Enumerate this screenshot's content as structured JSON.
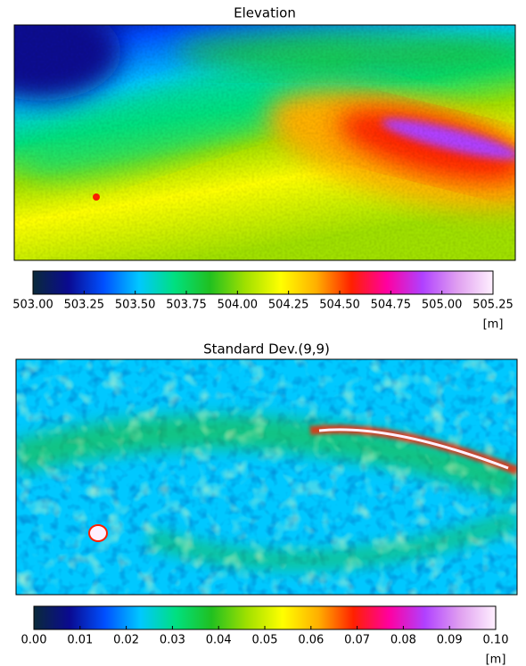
{
  "chart_data": [
    {
      "type": "heatmap",
      "title": "Elevation",
      "colormap": [
        "#0a2a3a",
        "#0a0a90",
        "#0050ff",
        "#00c8ff",
        "#00e080",
        "#20c020",
        "#a0e000",
        "#ffff00",
        "#ffb000",
        "#ff2000",
        "#ff00a0",
        "#b040ff",
        "#e0a0f0",
        "#fff0ff"
      ],
      "colorbar": {
        "label": "[m]",
        "lim": [
          503,
          505.25
        ],
        "ticks": [
          {
            "value": 503,
            "label": "503.00"
          },
          503.25,
          {
            "value": 503.5,
            "label": "503.50"
          },
          503.75,
          {
            "value": 504,
            "label": "504.00"
          },
          504.25,
          {
            "value": 504.5,
            "label": "504.50"
          },
          504.75,
          {
            "value": 505,
            "label": "505.00"
          },
          505.25
        ]
      }
    },
    {
      "type": "heatmap",
      "title": "Standard Dev.(9,9)",
      "colormap": [
        "#0a2a3a",
        "#0a0a90",
        "#0050ff",
        "#00c8ff",
        "#00e080",
        "#20c020",
        "#a0e000",
        "#ffff00",
        "#ffb000",
        "#ff2000",
        "#ff00a0",
        "#b040ff",
        "#e0a0f0",
        "#fff0ff"
      ],
      "colorbar": {
        "label": "[m]",
        "lim": [
          0,
          0.1
        ],
        "ticks": [
          {
            "value": 0,
            "label": "0.00"
          },
          0.01,
          0.02,
          0.03,
          0.04,
          0.05,
          0.06,
          0.07,
          0.08,
          0.09,
          {
            "value": 0.1,
            "label": "0.10"
          }
        ]
      }
    }
  ]
}
